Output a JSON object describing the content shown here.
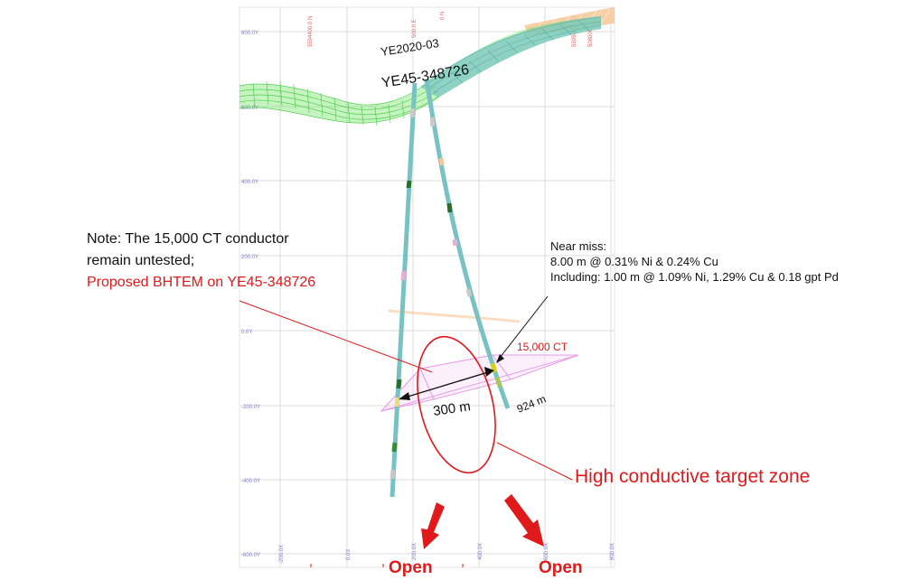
{
  "section": {
    "hole_1_label": "YE2020-03",
    "hole_2_label": "YE45-348726",
    "conductor_label": "15,000 CT",
    "distance_label": "300 m",
    "depth_label": "924 m",
    "elevation_labels": [
      "800.0Y",
      "600.0Y",
      "400.0Y",
      "200.0Y",
      "0.0Y",
      "-200.0Y",
      "-400.0Y",
      "-600.0Y"
    ],
    "easting_labels": [
      "-200.0X",
      "0.0X",
      "200.0X",
      "400.0X",
      "600.0X",
      "800.0X"
    ],
    "northing_labels": [
      "5594400.0 N",
      "500.0 E",
      "0 N",
      "5595000.0 N",
      "508000.0 E"
    ]
  },
  "note": {
    "line_1": "Note: The 15,000 CT conductor",
    "line_2": "remain untested;",
    "line_3": "Proposed BHTEM on YE45-348726"
  },
  "assay": {
    "title": "Near miss:",
    "line_1": "8.00 m @ 0.31% Ni & 0.24% Cu",
    "line_2": "Including: 1.00 m @ 1.09% Ni, 1.29% Cu & 0.18 gpt Pd"
  },
  "target": {
    "label": "High conductive target zone"
  },
  "open_labels": {
    "left": "Open",
    "right": "Open"
  },
  "colors": {
    "red": "#e0191b",
    "grid": "#d9d9d9",
    "tick_text": "#7b7bd4",
    "surface_green": "#5de04a",
    "surface_teal": "#7cc7c4",
    "surface_orange": "#f5c89a",
    "drillhole": "#78c2c3",
    "conductor_plate": "#e59ae8"
  }
}
